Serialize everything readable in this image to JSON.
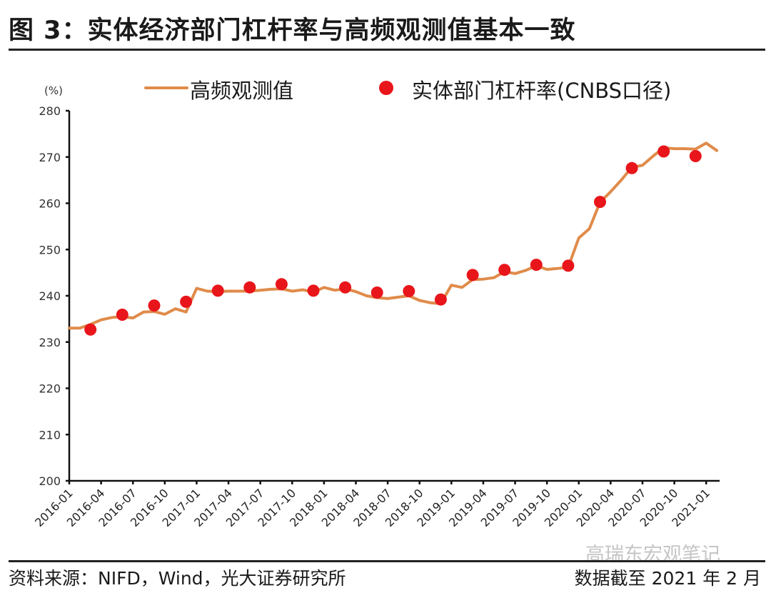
{
  "header": {
    "title": "图 3：实体经济部门杠杆率与高频观测值基本一致"
  },
  "footer": {
    "source": "资料来源：NIFD，Wind，光大证券研究所",
    "as_of": "数据截至 2021 年 2 月",
    "watermark": "高瑞东宏观笔记"
  },
  "colors": {
    "line": "#e08b4a",
    "dots": "#e8151b",
    "axis": "#111111"
  },
  "chart_data": {
    "type": "line",
    "title": "图 3：实体经济部门杠杆率与高频观测值基本一致",
    "xlabel": "",
    "ylabel": "(%)",
    "ylim": [
      200,
      280
    ],
    "yticks": [
      200,
      210,
      220,
      230,
      240,
      250,
      260,
      270,
      280
    ],
    "xtick_labels": [
      "2016-01",
      "2016-04",
      "2016-07",
      "2016-10",
      "2017-01",
      "2017-04",
      "2017-07",
      "2017-10",
      "2018-01",
      "2018-04",
      "2018-07",
      "2018-10",
      "2019-01",
      "2019-04",
      "2019-07",
      "2019-10",
      "2020-01",
      "2020-04",
      "2020-07",
      "2020-10",
      "2021-01"
    ],
    "grid": false,
    "legend_position": "top",
    "x": [
      "2016-01",
      "2016-02",
      "2016-03",
      "2016-04",
      "2016-05",
      "2016-06",
      "2016-07",
      "2016-08",
      "2016-09",
      "2016-10",
      "2016-11",
      "2016-12",
      "2017-01",
      "2017-02",
      "2017-03",
      "2017-04",
      "2017-05",
      "2017-06",
      "2017-07",
      "2017-08",
      "2017-09",
      "2017-10",
      "2017-11",
      "2017-12",
      "2018-01",
      "2018-02",
      "2018-03",
      "2018-04",
      "2018-05",
      "2018-06",
      "2018-07",
      "2018-08",
      "2018-09",
      "2018-10",
      "2018-11",
      "2018-12",
      "2019-01",
      "2019-02",
      "2019-03",
      "2019-04",
      "2019-05",
      "2019-06",
      "2019-07",
      "2019-08",
      "2019-09",
      "2019-10",
      "2019-11",
      "2019-12",
      "2020-01",
      "2020-02",
      "2020-03",
      "2020-04",
      "2020-05",
      "2020-06",
      "2020-07",
      "2020-08",
      "2020-09",
      "2020-10",
      "2020-11",
      "2020-12",
      "2021-01",
      "2021-02"
    ],
    "series": [
      {
        "name": "高频观测值",
        "type": "line",
        "values": [
          233.0,
          233.0,
          233.8,
          234.8,
          235.3,
          235.5,
          235.2,
          236.5,
          236.6,
          236.0,
          237.2,
          236.5,
          241.6,
          241.0,
          240.9,
          241.0,
          241.0,
          241.0,
          241.2,
          241.4,
          241.5,
          241.0,
          241.3,
          240.8,
          241.8,
          241.2,
          241.5,
          240.9,
          240.0,
          239.6,
          239.4,
          239.7,
          240.0,
          239.0,
          238.5,
          238.3,
          242.3,
          241.8,
          243.5,
          243.6,
          243.9,
          245.2,
          244.8,
          245.5,
          246.5,
          245.7,
          245.9,
          246.2,
          252.5,
          254.5,
          260.2,
          262.5,
          265.0,
          267.8,
          268.2,
          270.2,
          272.0,
          271.8,
          271.8,
          271.7,
          273.0,
          271.4
        ]
      },
      {
        "name": "实体部门杠杆率(CNBS口径)",
        "type": "scatter",
        "x": [
          "2016-03",
          "2016-06",
          "2016-09",
          "2016-12",
          "2017-03",
          "2017-06",
          "2017-09",
          "2017-12",
          "2018-03",
          "2018-06",
          "2018-09",
          "2018-12",
          "2019-03",
          "2019-06",
          "2019-09",
          "2019-12",
          "2020-03",
          "2020-06",
          "2020-09",
          "2020-12"
        ],
        "x_index": [
          2,
          5,
          8,
          11,
          14,
          17,
          20,
          23,
          26,
          29,
          32,
          35,
          38,
          41,
          44,
          47,
          50,
          53,
          56,
          59
        ],
        "values": [
          232.7,
          235.9,
          237.9,
          238.7,
          241.1,
          241.8,
          242.5,
          241.1,
          241.8,
          240.7,
          241.0,
          239.2,
          244.5,
          245.6,
          246.7,
          246.5,
          260.3,
          267.6,
          271.2,
          270.2
        ]
      }
    ]
  },
  "legend": {
    "line_label": "高频观测值",
    "dot_label": "实体部门杠杆率(CNBS口径)"
  },
  "axis": {
    "unit": "(%)"
  }
}
